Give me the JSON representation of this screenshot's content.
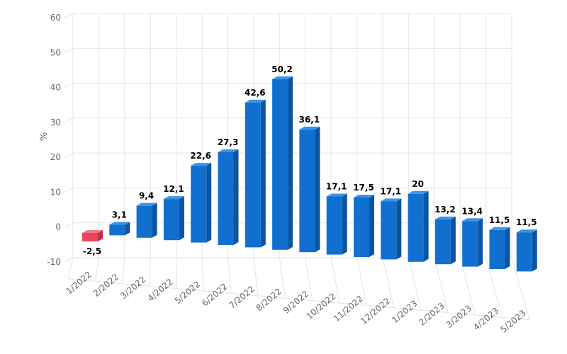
{
  "chart_data": {
    "type": "bar",
    "title": "",
    "xlabel": "",
    "ylabel": "%",
    "ylim": [
      -10,
      60
    ],
    "yticks": [
      -10,
      0,
      10,
      20,
      30,
      40,
      50,
      60
    ],
    "ytick_labels": [
      "-10",
      "0",
      "10",
      "20",
      "30",
      "40",
      "50",
      "60"
    ],
    "grid": true,
    "style": "3d",
    "categories": [
      "1/2022",
      "2/2022",
      "3/2022",
      "4/2022",
      "5/2022",
      "6/2022",
      "7/2022",
      "8/2022",
      "9/2022",
      "10/2022",
      "11/2022",
      "12/2022",
      "1/2023",
      "2/2023",
      "3/2023",
      "4/2023",
      "5/2023"
    ],
    "values": [
      -2.5,
      3.1,
      9.4,
      12.1,
      22.6,
      27.3,
      42.6,
      50.2,
      36.1,
      17.1,
      17.5,
      17.1,
      20,
      13.2,
      13.4,
      11.5,
      11.5
    ],
    "data_labels": [
      "-2,5",
      "3,1",
      "9,4",
      "12,1",
      "22,6",
      "27,3",
      "42,6",
      "50,2",
      "36,1",
      "17,1",
      "17,5",
      "17,1",
      "20",
      "13,2",
      "13,4",
      "11,5",
      "11,5"
    ],
    "colors": {
      "positive": "#1170cf",
      "positive_side": "#0a55a2",
      "positive_top": "#3e92e6",
      "negative": "#f0435f",
      "negative_side": "#c62d47",
      "negative_top": "#f5788c",
      "grid": "#e3e3e3"
    }
  }
}
